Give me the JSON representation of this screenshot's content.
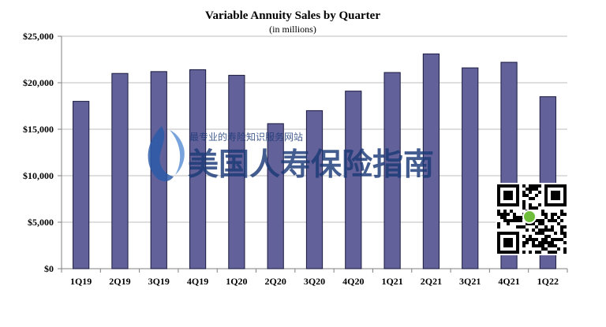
{
  "chart_data": {
    "type": "bar",
    "title": "Variable Annuity Sales by Quarter",
    "subtitle": "(in millions)",
    "categories": [
      "1Q19",
      "2Q19",
      "3Q19",
      "4Q19",
      "1Q20",
      "2Q20",
      "3Q20",
      "4Q20",
      "1Q21",
      "2Q21",
      "3Q21",
      "4Q21",
      "1Q22"
    ],
    "values": [
      18000,
      21000,
      21200,
      21400,
      20800,
      15600,
      17000,
      19100,
      21100,
      23100,
      21600,
      22200,
      18500
    ],
    "ylim": [
      0,
      25000
    ],
    "yticks": [
      0,
      5000,
      10000,
      15000,
      20000,
      25000
    ],
    "ytick_labels": [
      "$0",
      "$5,000",
      "$10,000",
      "$15,000",
      "$20,000",
      "$25,000"
    ],
    "grid": true,
    "bar_color": "#636199"
  },
  "watermark": {
    "main_text": "美国人寿保险指南",
    "sub_text": "最专业的寿险知识服务网站",
    "color": "#1b3a78",
    "icon": "flame-logo"
  },
  "qr": {
    "icon": "qr-code",
    "center_icon": "wechat-icon"
  }
}
